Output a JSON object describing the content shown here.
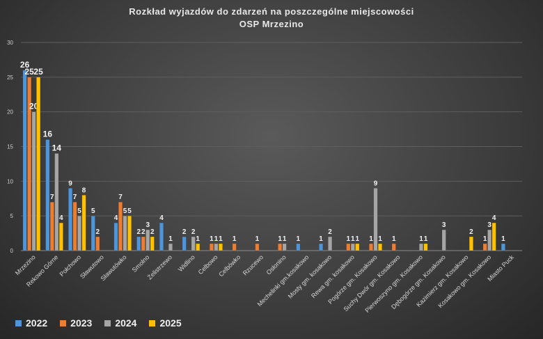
{
  "chart_data": {
    "type": "bar",
    "title": "Rozkład wyjazdów do zdarzeń na poszczególne miejscowości",
    "subtitle": "OSP Mrzezino",
    "xlabel": "",
    "ylabel": "",
    "ylim": [
      0,
      30
    ],
    "yticks": [
      "0",
      "5",
      "10",
      "15",
      "20",
      "25",
      "30"
    ],
    "grid": true,
    "legend_position": "bottom-left",
    "categories": [
      "Mrzezino",
      "Rekowo Górne",
      "Połchowo",
      "Sławutowo",
      "Sławutówko",
      "Smolno",
      "Żelistrzewo",
      "Widlino",
      "Celbowo",
      "Celbówko",
      "Rzucewo",
      "Osłonino",
      "Mechelinki gm.kosakowo",
      "Mosty gm. kosakowo",
      "Rewa gm. kosakowo",
      "Pogórze gm. Kosakowo",
      "Suchy Dwór gm. Kosakowo",
      "Pierwoszyno gm. Kosakowo",
      "Dębogórze gm. Kosakowo",
      "Kazimierz gm. Kosakowo",
      "Kosakowo gm. Kosakowo",
      "Miasto Puck"
    ],
    "series": [
      {
        "name": "2022",
        "color": "#4e95d9",
        "values": [
          26,
          16,
          9,
          5,
          4,
          2,
          4,
          2,
          0,
          0,
          0,
          0,
          1,
          1,
          0,
          0,
          0,
          0,
          0,
          0,
          0,
          1
        ]
      },
      {
        "name": "2023",
        "color": "#ed7d31",
        "values": [
          25,
          7,
          7,
          2,
          7,
          2,
          0,
          0,
          1,
          1,
          1,
          1,
          0,
          0,
          1,
          1,
          1,
          0,
          0,
          0,
          1,
          0
        ]
      },
      {
        "name": "2024",
        "color": "#a5a5a5",
        "values": [
          20,
          14,
          5,
          0,
          5,
          3,
          1,
          2,
          1,
          0,
          0,
          1,
          0,
          2,
          1,
          9,
          0,
          1,
          3,
          0,
          3,
          0
        ]
      },
      {
        "name": "2025",
        "color": "#ffc000",
        "values": [
          25,
          4,
          8,
          0,
          5,
          2,
          0,
          1,
          1,
          0,
          0,
          0,
          0,
          0,
          1,
          1,
          0,
          1,
          0,
          2,
          4,
          0
        ]
      }
    ]
  }
}
